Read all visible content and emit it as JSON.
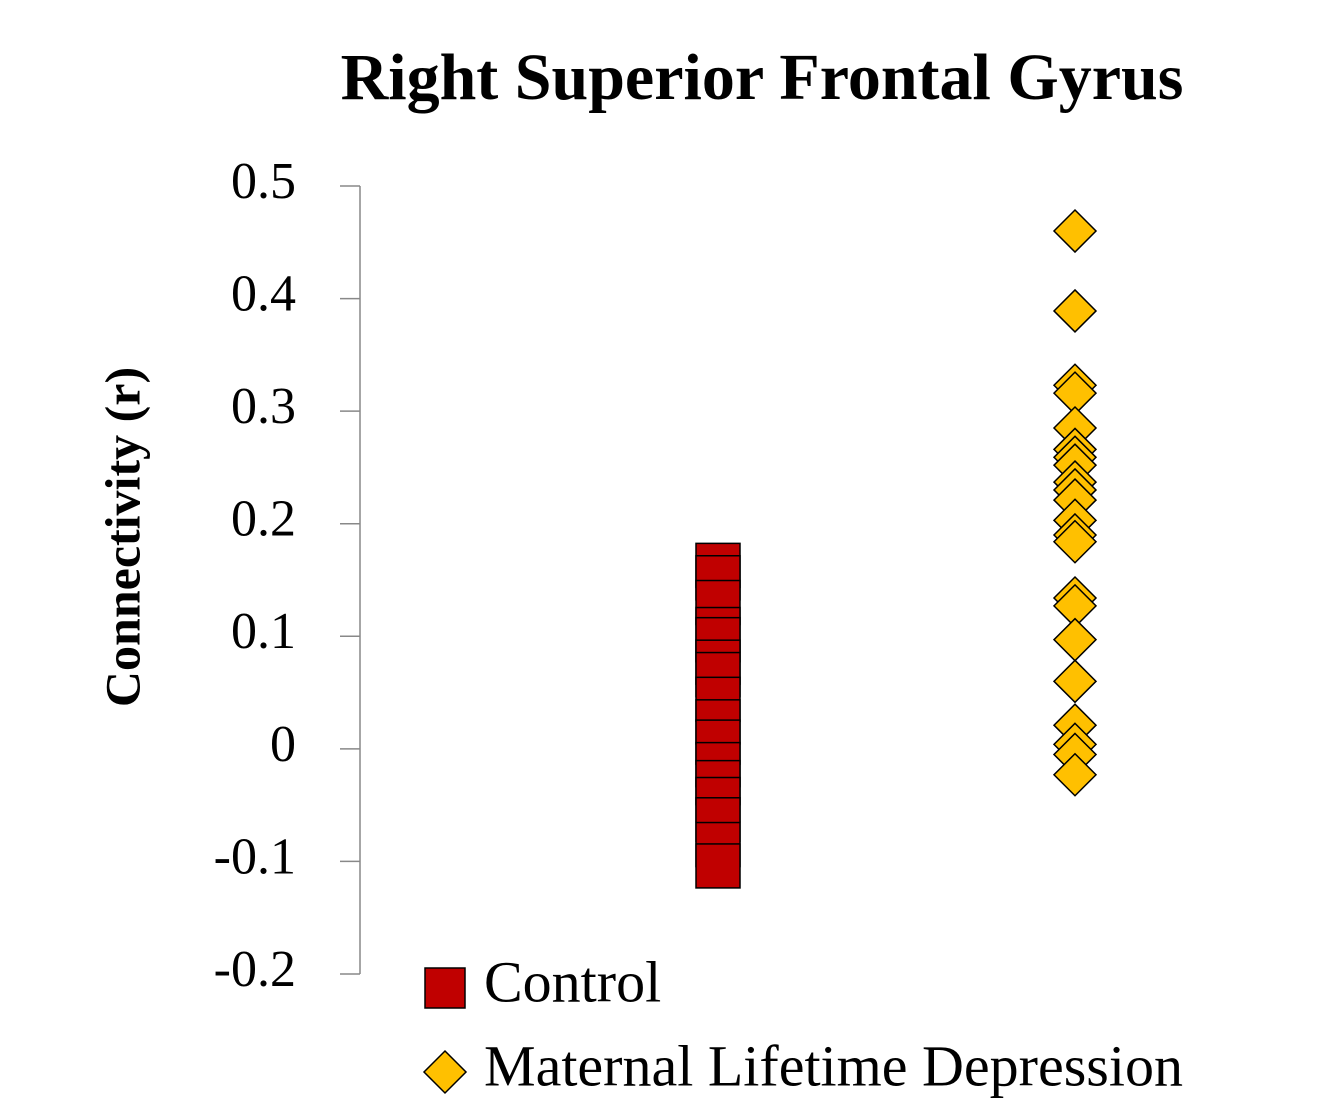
{
  "chart_data": {
    "type": "strip",
    "title": "Right Superior Frontal Gyrus",
    "y_label": "Connectivity (r)",
    "ylim": [
      -0.2,
      0.5
    ],
    "yticks": [
      -0.2,
      -0.1,
      0,
      0.1,
      0.2,
      0.3,
      0.4,
      0.5
    ],
    "series": [
      {
        "name": "Control",
        "color": "#c00000",
        "marker": "square",
        "values": [
          0.163,
          0.152,
          0.13,
          0.106,
          0.097,
          0.077,
          0.066,
          0.044,
          0.024,
          0.006,
          -0.014,
          -0.03,
          -0.045,
          -0.063,
          -0.085,
          -0.104
        ]
      },
      {
        "name": "Maternal Lifetime Depression",
        "color": "#ffc000",
        "marker": "diamond",
        "values": [
          0.46,
          0.389,
          0.323,
          0.316,
          0.285,
          0.266,
          0.259,
          0.252,
          0.237,
          0.23,
          0.221,
          0.203,
          0.19,
          0.184,
          0.134,
          0.127,
          0.097,
          0.06,
          0.021,
          0.004,
          -0.005,
          -0.023
        ]
      }
    ]
  }
}
